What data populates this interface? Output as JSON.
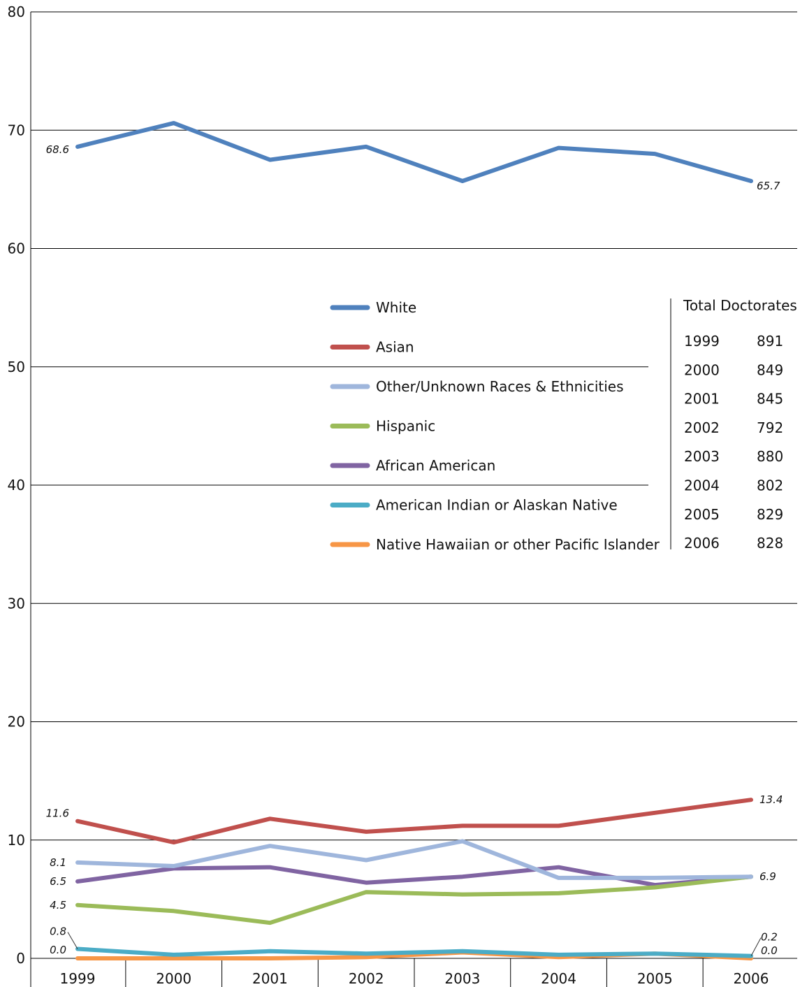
{
  "chart_data": {
    "type": "line",
    "categories": [
      "1999",
      "2000",
      "2001",
      "2002",
      "2003",
      "2004",
      "2005",
      "2006"
    ],
    "ylim": [
      0,
      80
    ],
    "yticks": [
      0,
      10,
      20,
      30,
      40,
      50,
      60,
      70,
      80
    ],
    "grid": true,
    "legend_position": "center",
    "series": [
      {
        "name": "White",
        "color": "#4f81bd",
        "values": [
          68.6,
          70.6,
          67.5,
          68.6,
          65.7,
          68.5,
          68.0,
          65.7
        ]
      },
      {
        "name": "Asian",
        "color": "#c0504d",
        "values": [
          11.6,
          9.8,
          11.8,
          10.7,
          11.2,
          11.2,
          12.3,
          13.4
        ]
      },
      {
        "name": "Other/Unknown Races & Ethnicities",
        "color": "#9fb6dc",
        "values": [
          8.1,
          7.8,
          9.5,
          8.3,
          9.9,
          6.8,
          6.8,
          6.9
        ]
      },
      {
        "name": "Hispanic",
        "color": "#9bbb59",
        "values": [
          4.5,
          4.0,
          3.0,
          5.6,
          5.4,
          5.5,
          6.0,
          6.9
        ]
      },
      {
        "name": "African American",
        "color": "#8064a2",
        "values": [
          6.5,
          7.6,
          7.7,
          6.4,
          6.9,
          7.7,
          6.2,
          6.9
        ]
      },
      {
        "name": "American Indian or Alaskan Native",
        "color": "#4bacc6",
        "values": [
          0.8,
          0.3,
          0.6,
          0.4,
          0.6,
          0.3,
          0.4,
          0.2
        ]
      },
      {
        "name": "Native Hawaiian or other Pacific Islander",
        "color": "#f79646",
        "values": [
          0.0,
          0.0,
          0.0,
          0.1,
          0.5,
          0.1,
          0.4,
          0.0
        ]
      }
    ],
    "annotations": [
      {
        "text": "68.6",
        "x": "1999",
        "series": "White"
      },
      {
        "text": "65.7",
        "x": "2006",
        "series": "White"
      },
      {
        "text": "11.6",
        "x": "1999",
        "series": "Asian"
      },
      {
        "text": "13.4",
        "x": "2006",
        "series": "Asian"
      },
      {
        "text": "8.1",
        "x": "1999",
        "series": "Other/Unknown Races & Ethnicities"
      },
      {
        "text": "6.5",
        "x": "1999",
        "series": "African American"
      },
      {
        "text": "4.5",
        "x": "1999",
        "series": "Hispanic"
      },
      {
        "text": "6.9",
        "x": "2006",
        "series": "Hispanic"
      },
      {
        "text": "0.8",
        "x": "1999",
        "series": "American Indian or Alaskan Native"
      },
      {
        "text": "0.0",
        "x": "1999",
        "series": "Native Hawaiian or other Pacific Islander"
      },
      {
        "text": "0.2",
        "x": "2006",
        "series": "American Indian or Alaskan Native"
      },
      {
        "text": "0.0",
        "x": "2006",
        "series": "Native Hawaiian or other Pacific Islander"
      }
    ],
    "total_doctorates": {
      "title": "Total Doctorates",
      "rows": [
        {
          "year": "1999",
          "count": "891"
        },
        {
          "year": "2000",
          "count": "849"
        },
        {
          "year": "2001",
          "count": "845"
        },
        {
          "year": "2002",
          "count": "792"
        },
        {
          "year": "2003",
          "count": "880"
        },
        {
          "year": "2004",
          "count": "802"
        },
        {
          "year": "2005",
          "count": "829"
        },
        {
          "year": "2006",
          "count": "828"
        }
      ]
    }
  }
}
